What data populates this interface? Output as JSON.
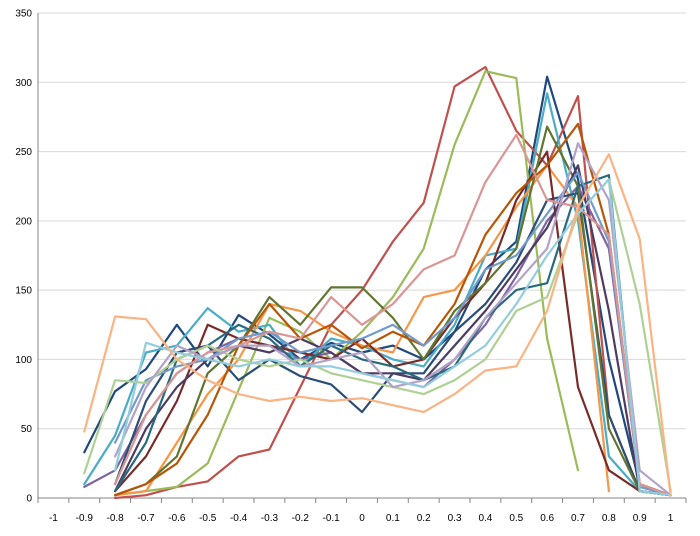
{
  "chart_data": {
    "type": "line",
    "title": "",
    "xlabel": "",
    "ylabel": "",
    "x": [
      -1,
      -0.9,
      -0.8,
      -0.7,
      -0.6,
      -0.5,
      -0.4,
      -0.3,
      -0.2,
      -0.1,
      0,
      0.1,
      0.2,
      0.3,
      0.4,
      0.5,
      0.6,
      0.7,
      0.8,
      0.9,
      1
    ],
    "x_tick_labels": [
      "-1",
      "-0.9",
      "-0.8",
      "-0.7",
      "-0.6",
      "-0.5",
      "-0.4",
      "-0.3",
      "-0.2",
      "-0.1",
      "0",
      "0.1",
      "0.2",
      "0.3",
      "0.4",
      "0.5",
      "0.6",
      "0.7",
      "0.8",
      "0.9",
      "1"
    ],
    "y_tick_labels": [
      "0",
      "50",
      "100",
      "150",
      "200",
      "250",
      "300",
      "350"
    ],
    "ylim": [
      0,
      350
    ],
    "grid": "horizontal",
    "legend": "none",
    "series": [
      {
        "color": "#1f497d",
        "values": [
          null,
          33,
          77,
          93,
          125,
          95,
          132,
          118,
          100,
          112,
          105,
          110,
          100,
          120,
          165,
          185,
          304,
          230,
          100,
          10,
          2
        ]
      },
      {
        "color": "#c0504d",
        "values": [
          null,
          null,
          0,
          2,
          8,
          12,
          30,
          35,
          80,
          125,
          150,
          185,
          213,
          297,
          311,
          265,
          240,
          290,
          60,
          5,
          2
        ]
      },
      {
        "color": "#9bbb59",
        "values": [
          null,
          null,
          2,
          5,
          8,
          25,
          78,
          130,
          120,
          100,
          120,
          145,
          180,
          255,
          308,
          303,
          115,
          20,
          null,
          null,
          null
        ]
      },
      {
        "color": "#8064a2",
        "values": [
          null,
          8,
          20,
          60,
          90,
          105,
          115,
          110,
          100,
          105,
          90,
          85,
          80,
          100,
          125,
          160,
          200,
          225,
          180,
          10,
          2
        ]
      },
      {
        "color": "#4bacc6",
        "values": [
          null,
          10,
          45,
          105,
          110,
          137,
          120,
          125,
          95,
          115,
          110,
          100,
          95,
          125,
          175,
          180,
          292,
          200,
          30,
          5,
          2
        ]
      },
      {
        "color": "#f79646",
        "values": [
          null,
          null,
          2,
          5,
          40,
          75,
          100,
          140,
          135,
          120,
          110,
          105,
          145,
          150,
          175,
          210,
          240,
          210,
          5,
          null,
          null
        ]
      },
      {
        "color": "#2c4d75",
        "values": [
          null,
          null,
          10,
          70,
          105,
          110,
          85,
          100,
          88,
          82,
          62,
          90,
          90,
          120,
          140,
          170,
          215,
          220,
          60,
          5,
          2
        ]
      },
      {
        "color": "#772c2a",
        "values": [
          null,
          null,
          5,
          30,
          70,
          125,
          115,
          110,
          105,
          100,
          115,
          95,
          100,
          130,
          155,
          215,
          250,
          80,
          20,
          5,
          2
        ]
      },
      {
        "color": "#5f7530",
        "values": [
          null,
          null,
          2,
          10,
          30,
          90,
          110,
          145,
          125,
          152,
          152,
          130,
          100,
          135,
          155,
          180,
          268,
          225,
          50,
          5,
          2
        ]
      },
      {
        "color": "#4d3b62",
        "values": [
          null,
          null,
          5,
          50,
          80,
          100,
          110,
          105,
          115,
          105,
          90,
          90,
          85,
          110,
          135,
          165,
          195,
          240,
          135,
          5,
          2
        ]
      },
      {
        "color": "#276a7c",
        "values": [
          null,
          null,
          5,
          40,
          100,
          110,
          125,
          115,
          95,
          110,
          100,
          95,
          85,
          95,
          130,
          150,
          155,
          225,
          233,
          5,
          2
        ]
      },
      {
        "color": "#b65708",
        "values": [
          null,
          null,
          2,
          10,
          25,
          60,
          110,
          140,
          115,
          125,
          108,
          120,
          110,
          140,
          190,
          220,
          240,
          270,
          190,
          10,
          2
        ]
      },
      {
        "color": "#729aca",
        "values": [
          null,
          null,
          40,
          85,
          95,
          100,
          115,
          120,
          105,
          110,
          115,
          125,
          110,
          130,
          165,
          175,
          205,
          235,
          185,
          8,
          2
        ]
      },
      {
        "color": "#d99694",
        "values": [
          null,
          null,
          10,
          60,
          90,
          105,
          110,
          120,
          115,
          145,
          125,
          140,
          165,
          175,
          228,
          262,
          215,
          210,
          190,
          10,
          2
        ]
      },
      {
        "color": "#afd095",
        "values": [
          null,
          18,
          85,
          83,
          100,
          110,
          100,
          95,
          100,
          90,
          85,
          80,
          75,
          85,
          100,
          135,
          145,
          205,
          230,
          140,
          5
        ]
      },
      {
        "color": "#b3a2c7",
        "values": [
          null,
          null,
          30,
          80,
          110,
          100,
          110,
          110,
          95,
          100,
          105,
          80,
          85,
          100,
          130,
          155,
          180,
          256,
          215,
          20,
          2
        ]
      },
      {
        "color": "#93cddd",
        "values": [
          null,
          null,
          20,
          112,
          105,
          100,
          95,
          100,
          95,
          95,
          90,
          85,
          80,
          95,
          110,
          140,
          175,
          205,
          230,
          5,
          2
        ]
      },
      {
        "color": "#fab383",
        "values": [
          null,
          48,
          131,
          129,
          100,
          85,
          75,
          70,
          73,
          70,
          72,
          67,
          62,
          75,
          92,
          95,
          135,
          210,
          248,
          187,
          2
        ]
      }
    ]
  }
}
